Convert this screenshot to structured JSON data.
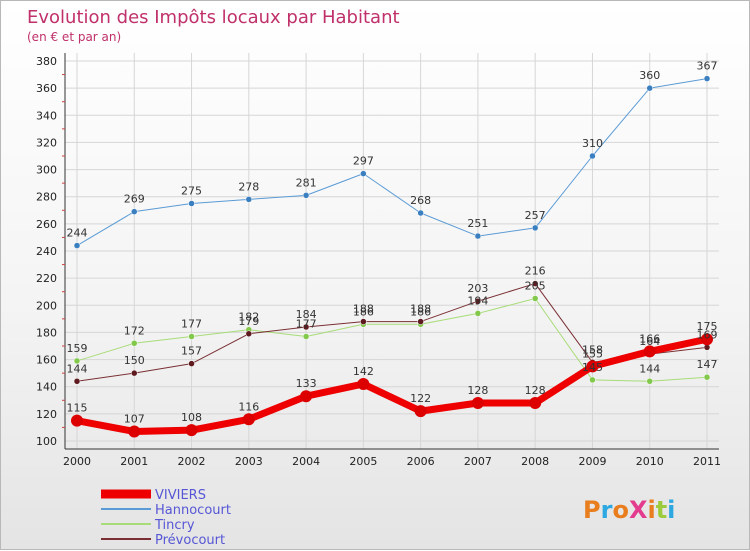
{
  "chart_data": {
    "type": "line",
    "title": "Evolution des Impôts locaux par Habitant",
    "subtitle": "(en € et par an)",
    "categories": [
      "2000",
      "2001",
      "2002",
      "2003",
      "2004",
      "2005",
      "2006",
      "2007",
      "2008",
      "2009",
      "2010",
      "2011"
    ],
    "ylim": [
      100,
      380
    ],
    "yticks": [
      100,
      120,
      140,
      160,
      180,
      200,
      220,
      240,
      260,
      280,
      300,
      320,
      340,
      360,
      380
    ],
    "grid": true,
    "legend_position": "bottom-left",
    "series": [
      {
        "name": "Hannocourt",
        "color": "#5b9bd5",
        "dot": "#3a7fc0",
        "line_width": 1,
        "values": [
          244,
          269,
          275,
          278,
          281,
          297,
          268,
          251,
          257,
          310,
          360,
          367
        ]
      },
      {
        "name": "Tincry",
        "color": "#a8dc78",
        "dot": "#82c84a",
        "line_width": 1,
        "values": [
          159,
          172,
          177,
          182,
          177,
          186,
          186,
          194,
          205,
          145,
          144,
          147
        ]
      },
      {
        "name": "Prévocourt",
        "color": "#7a2f34",
        "dot": "#5e1a1e",
        "line_width": 1,
        "values": [
          144,
          150,
          157,
          179,
          184,
          188,
          188,
          203,
          216,
          158,
          164,
          169
        ]
      },
      {
        "name": "VIVIERS",
        "color": "#ee0000",
        "dot": "#dd0000",
        "line_width": 7,
        "values": [
          115,
          107,
          108,
          116,
          133,
          142,
          122,
          128,
          128,
          155,
          166,
          175
        ]
      }
    ],
    "legend_order": [
      "VIVIERS",
      "Hannocourt",
      "Tincry",
      "Prévocourt"
    ]
  },
  "logo": {
    "text": "ProXiti",
    "colors": [
      "#e87e1e",
      "#2ea8e0",
      "#e87e1e",
      "#e33c8e",
      "#e87e1e",
      "#9ccc3c",
      "#2ea8e0"
    ]
  }
}
